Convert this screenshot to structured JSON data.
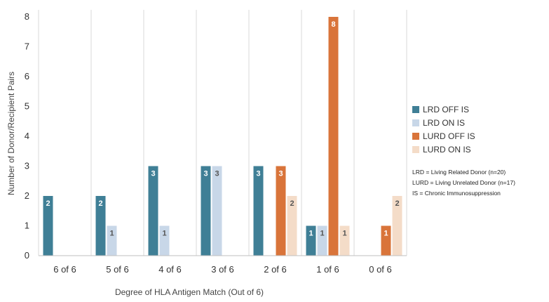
{
  "chart_data": {
    "type": "bar",
    "title": "",
    "xlabel": "Degree of HLA Antigen Match (Out of 6)",
    "ylabel": "Number of Donor/Recipient Pairs",
    "ylim": [
      0,
      8
    ],
    "yticks": [
      "0",
      "1",
      "2",
      "3",
      "4",
      "5",
      "6",
      "7",
      "8"
    ],
    "grid": "vertical separators between categories",
    "legend_position": "right",
    "categories": [
      "6 of 6",
      "5 of 6",
      "4 of 6",
      "3 of 6",
      "2 of 6",
      "1 of 6",
      "0 of 6"
    ],
    "series": [
      {
        "name": "LRD OFF IS",
        "color": "#3f7f96",
        "values": [
          2,
          2,
          3,
          3,
          3,
          1,
          0
        ]
      },
      {
        "name": "LRD ON IS",
        "color": "#c8d7e8",
        "values": [
          0,
          1,
          1,
          3,
          0,
          1,
          0
        ]
      },
      {
        "name": "LURD OFF IS",
        "color": "#d9743a",
        "values": [
          0,
          0,
          0,
          0,
          3,
          8,
          1
        ]
      },
      {
        "name": "LURD ON IS",
        "color": "#f4dcc8",
        "values": [
          0,
          0,
          0,
          0,
          2,
          1,
          2
        ]
      }
    ],
    "notes": [
      "LRD = Living Related Donor (n=20)",
      "LURD = Living Unrelated Donor (n=17)",
      "IS = Chronic Immunosuppression"
    ]
  }
}
